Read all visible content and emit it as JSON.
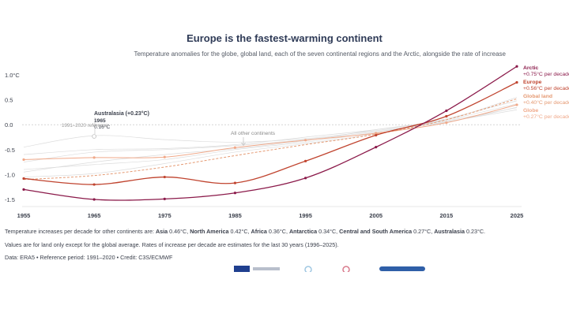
{
  "title": "Europe is the fastest-warming continent",
  "subtitle": "Temperature anomalies for the globe, global land, each of the seven continental regions and the Arctic, alongside the rate of increase",
  "notes": {
    "line1_prefix": "Temperature increases per decade for other continents are: ",
    "line1_items": [
      {
        "name": "Asia",
        "value": "0.46°C"
      },
      {
        "name": "North America",
        "value": "0.42°C"
      },
      {
        "name": "Africa",
        "value": "0.36°C"
      },
      {
        "name": "Antarctica",
        "value": "0.34°C"
      },
      {
        "name": "Central and South America",
        "value": "0.27°C"
      },
      {
        "name": "Australasia",
        "value": "0.23°C"
      }
    ],
    "line2": "Values are for land only except for the global average. Rates of increase per decade are estimates for the last 30 years (1996–2025).",
    "line3": "Data: ERA5 • Reference period: 1991–2020 • Credit: C3S/ECMWF"
  },
  "colors": {
    "arctic": "#8b1a4a",
    "europe": "#c0442f",
    "global_land": "#e59a73",
    "globe": "#f0a98a",
    "other": "#dcdcdc",
    "axis_text": "#3a3f4b",
    "title": "#2f3b57"
  },
  "chart_data": {
    "type": "line",
    "title": "Europe is the fastest-warming continent",
    "x": [
      1955,
      1965,
      1975,
      1985,
      1995,
      2005,
      2015,
      2025
    ],
    "xticks": [
      "1955",
      "1965",
      "1975",
      "1985",
      "1995",
      "2005",
      "2015",
      "2025"
    ],
    "yticks": [
      {
        "value": 1.0,
        "label": "1.0°C"
      },
      {
        "value": 0.5,
        "label": "0.5"
      },
      {
        "value": 0.0,
        "label": "0.0"
      },
      {
        "value": -0.5,
        "label": "-0.5"
      },
      {
        "value": -1.0,
        "label": "-1.0"
      },
      {
        "value": -1.5,
        "label": "-1.5"
      }
    ],
    "ylim": [
      -1.6,
      1.15
    ],
    "xlim": [
      1955,
      2025
    ],
    "grid": false,
    "series": [
      {
        "name": "Arctic",
        "key": "arctic",
        "label_rate": "+0.75°C per decade",
        "values": [
          -1.3,
          -1.5,
          -1.49,
          -1.37,
          -1.07,
          -0.45,
          0.28,
          1.17
        ]
      },
      {
        "name": "Europe",
        "key": "europe",
        "label_rate": "+0.56°C per decade",
        "values": [
          -1.08,
          -1.2,
          -1.05,
          -1.17,
          -0.73,
          -0.21,
          0.17,
          0.85
        ]
      },
      {
        "name": "Global land",
        "key": "global_land",
        "label_rate": "+0.40°C per decade",
        "dashed": true,
        "values": [
          -1.1,
          -1.02,
          -0.85,
          -0.62,
          -0.4,
          -0.19,
          0.1,
          0.52
        ]
      },
      {
        "name": "Globe",
        "key": "globe",
        "label_rate": "+0.27°C per decade",
        "values": [
          -0.7,
          -0.66,
          -0.65,
          -0.46,
          -0.31,
          -0.17,
          0.04,
          0.4
        ]
      }
    ],
    "other_series": [
      [
        -0.45,
        -0.22,
        -0.3,
        -0.35,
        -0.28,
        -0.12,
        0.05,
        0.35
      ],
      [
        -0.9,
        -0.8,
        -0.7,
        -0.5,
        -0.35,
        -0.15,
        0.1,
        0.55
      ],
      [
        -1.05,
        -0.98,
        -0.78,
        -0.55,
        -0.38,
        -0.18,
        0.12,
        0.48
      ],
      [
        -0.75,
        -0.55,
        -0.5,
        -0.42,
        -0.3,
        -0.14,
        0.06,
        0.3
      ],
      [
        -0.95,
        -0.75,
        -0.6,
        -0.48,
        -0.32,
        -0.1,
        0.1,
        0.42
      ],
      [
        -0.6,
        -0.5,
        -0.48,
        -0.4,
        -0.25,
        -0.1,
        0.08,
        0.34
      ]
    ],
    "annotations": {
      "australasia_label": "Australasia (+0.23°C)",
      "australasia_year": "1965",
      "australasia_value": "0.16°C",
      "australasia_point": {
        "x": 1965,
        "y": 0.16
      },
      "reference_label": "1991–2020 reference",
      "others_label": "All other continents",
      "others_point": {
        "x": 1988,
        "y": -0.38
      }
    }
  }
}
